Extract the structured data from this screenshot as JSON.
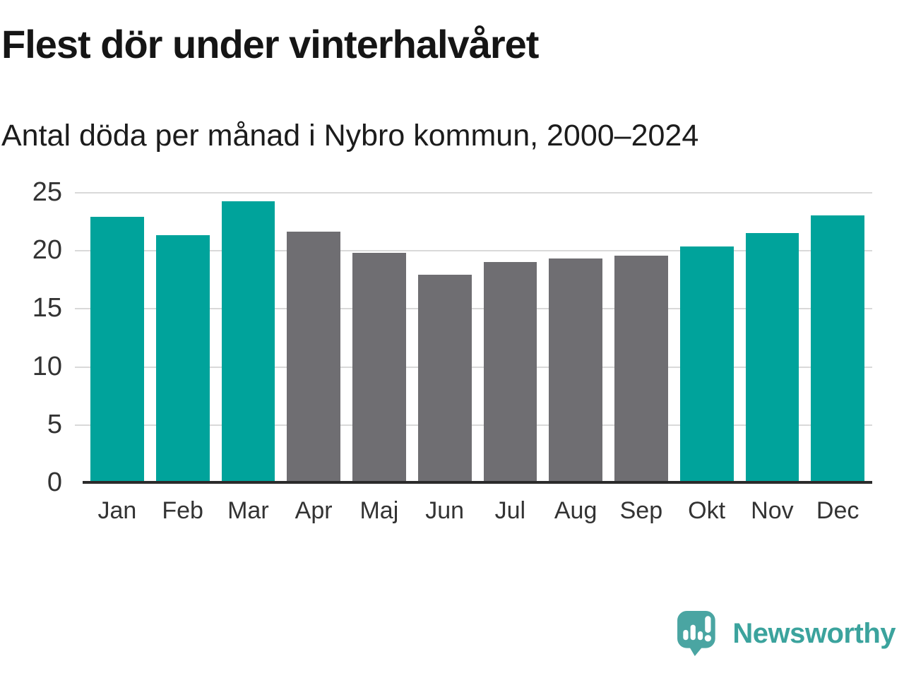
{
  "header": {
    "title": "Flest dör under vinterhalvåret",
    "subtitle": "Antal döda per månad i Nybro kommun, 2000–2024"
  },
  "chart_data": {
    "type": "bar",
    "title": "Flest dör under vinterhalvåret",
    "subtitle": "Antal döda per månad i Nybro kommun, 2000–2024",
    "categories": [
      "Jan",
      "Feb",
      "Mar",
      "Apr",
      "Maj",
      "Jun",
      "Jul",
      "Aug",
      "Sep",
      "Okt",
      "Nov",
      "Dec"
    ],
    "values": [
      22.9,
      21.3,
      24.2,
      21.6,
      19.8,
      17.9,
      19.0,
      19.3,
      19.5,
      20.3,
      21.5,
      23.0
    ],
    "bar_colors": [
      "teal",
      "teal",
      "teal",
      "gray",
      "gray",
      "gray",
      "gray",
      "gray",
      "gray",
      "teal",
      "teal",
      "teal"
    ],
    "palette": {
      "teal": "#00a39b",
      "gray": "#6f6e72"
    },
    "xlabel": "",
    "ylabel": "",
    "ylim": [
      0,
      25
    ],
    "yticks": [
      0,
      5,
      10,
      15,
      20,
      25
    ],
    "grid": "horizontal",
    "legend": "none",
    "axis_colors": {
      "baseline": "#2b2b2b",
      "gridline": "#d9d9d9",
      "tick_text": "#333333"
    }
  },
  "footer": {
    "brand": "Newsworthy",
    "logo_icon": "newsworthy-speech-bubble-bar-chart-icon",
    "logo_color": "#4aa5a2"
  }
}
